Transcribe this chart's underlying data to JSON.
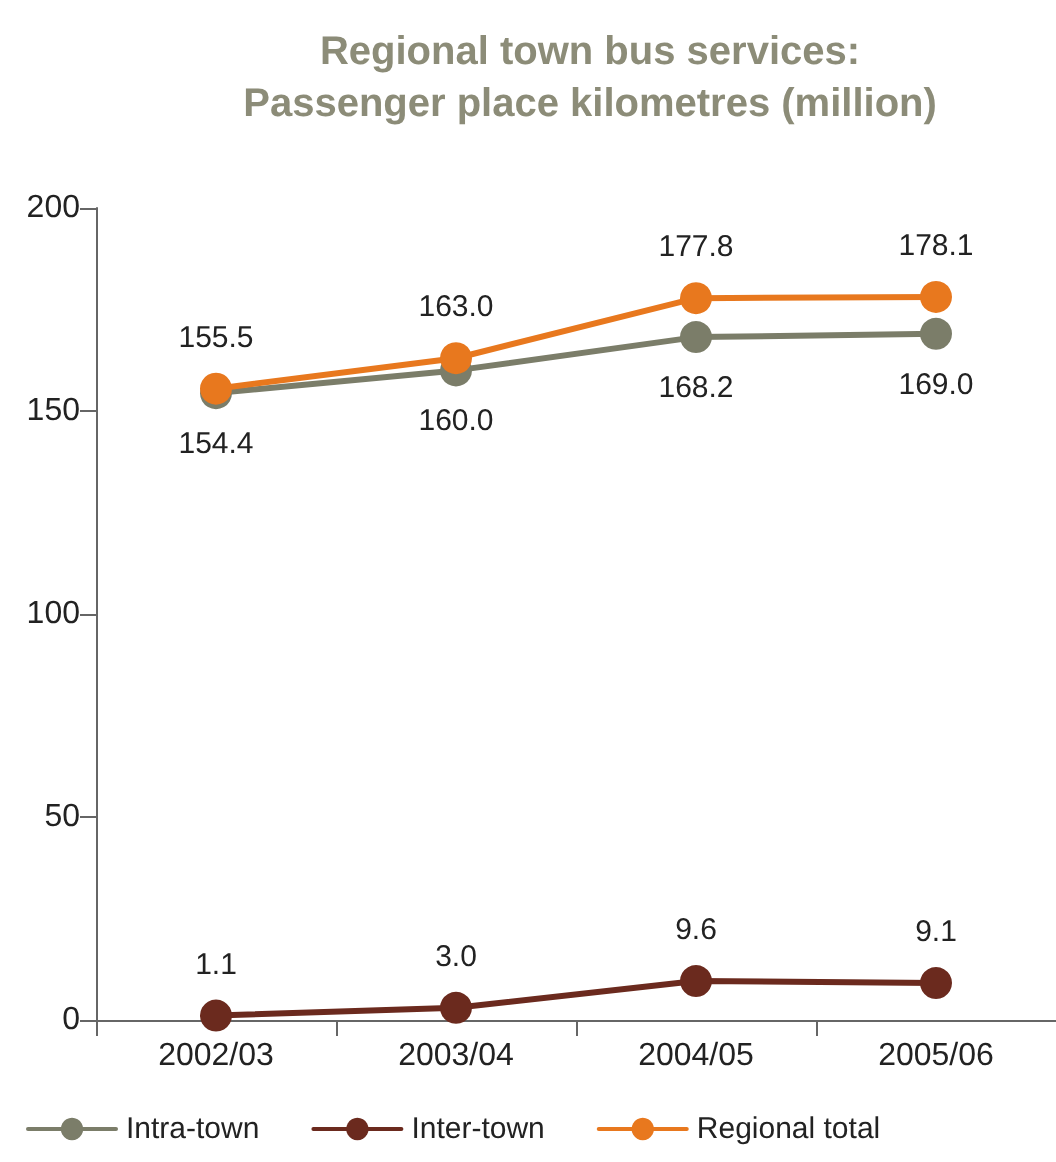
{
  "chart_data": {
    "type": "line",
    "title": "Regional town bus services:\nPassenger place kilometres (million)",
    "categories": [
      "2002/03",
      "2003/04",
      "2004/05",
      "2005/06"
    ],
    "series": [
      {
        "name": "Intra-town",
        "color": "#7b7d69",
        "values": [
          154.4,
          160.0,
          168.2,
          169.0
        ],
        "value_labels": [
          "154.4",
          "160.0",
          "168.2",
          "169.0"
        ]
      },
      {
        "name": "Inter-town",
        "color": "#6b2a1e",
        "values": [
          1.1,
          3.0,
          9.6,
          9.1
        ],
        "value_labels": [
          "1.1",
          "3.0",
          "9.6",
          "9.1"
        ]
      },
      {
        "name": "Regional total",
        "color": "#e8781e",
        "values": [
          155.5,
          163.0,
          177.8,
          178.1
        ],
        "value_labels": [
          "155.5",
          "163.0",
          "177.8",
          "178.1"
        ]
      }
    ],
    "ylim": [
      0,
      200
    ],
    "yticks": [
      0,
      50,
      100,
      150,
      200
    ],
    "grid": false,
    "legend": "bottom",
    "marker": "circle",
    "line_style": "solid"
  }
}
